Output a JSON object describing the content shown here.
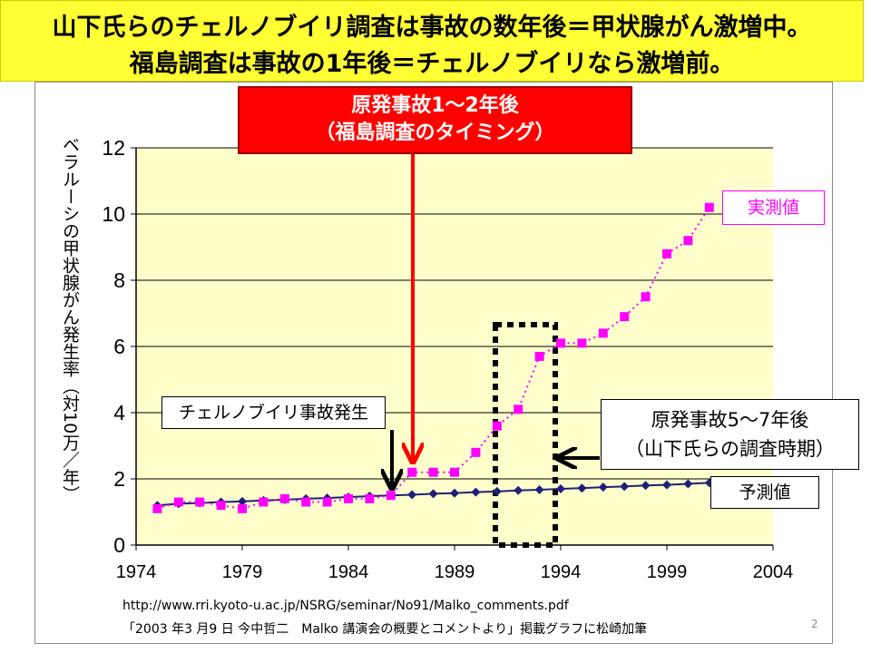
{
  "banner": {
    "line1": "山下氏らのチェルノブイリ調査は事故の数年後＝甲状腺がん激増中。",
    "line2": "福島調査は事故の1年後＝チェルノブイリなら激増前。"
  },
  "callouts": {
    "fukushima_timing_1": "原発事故1～2年後",
    "fukushima_timing_2": "（福島調査のタイミング）",
    "chernobyl_accident": "チェルノブイリ事故発生",
    "yamashita_1": "原発事故5～7年後",
    "yamashita_2": "（山下氏らの調査時期）",
    "measured": "実測値",
    "predicted": "予測値"
  },
  "source": {
    "url": "http://www.rri.kyoto-u.ac.jp/NSRG/seminar/No91/Malko_comments.pdf",
    "note": "「2003 年3 月9 日 今中哲二　Malko 講演会の概要とコメントより」掲載グラフに松崎加筆"
  },
  "page_number": "2",
  "colors": {
    "banner": "#ffff33",
    "plot_bg": "#ffffcc",
    "measured": "#ff00ff",
    "predicted": "#1f1f7a",
    "red_arrow": "#ff0000",
    "measured_label": "#ff00ff"
  },
  "chart_data": {
    "type": "line",
    "title": "",
    "xlabel": "",
    "ylabel": "ベラルーシの甲状腺がん発生率（対10万／年）",
    "xlim": [
      1974,
      2004
    ],
    "ylim": [
      0,
      12
    ],
    "x_ticks": [
      1974,
      1979,
      1984,
      1989,
      1994,
      1999,
      2004
    ],
    "y_ticks": [
      0,
      2,
      4,
      6,
      8,
      10,
      12
    ],
    "grid": "horizontal",
    "series": [
      {
        "name": "実測値",
        "marker": "square",
        "line": "dotted",
        "x": [
          1975,
          1976,
          1977,
          1978,
          1979,
          1980,
          1981,
          1982,
          1983,
          1984,
          1985,
          1986,
          1987,
          1988,
          1989,
          1990,
          1991,
          1992,
          1993,
          1994,
          1995,
          1996,
          1997,
          1998,
          1999,
          2000,
          2001
        ],
        "values": [
          1.1,
          1.3,
          1.3,
          1.2,
          1.1,
          1.3,
          1.4,
          1.3,
          1.3,
          1.4,
          1.4,
          1.5,
          2.2,
          2.2,
          2.2,
          2.8,
          3.6,
          4.1,
          5.7,
          6.1,
          6.1,
          6.4,
          6.9,
          7.5,
          8.8,
          9.2,
          10.2
        ]
      },
      {
        "name": "予測値",
        "marker": "diamond",
        "line": "solid",
        "x": [
          1975,
          1976,
          1977,
          1978,
          1979,
          1980,
          1981,
          1982,
          1983,
          1984,
          1985,
          1986,
          1987,
          1988,
          1989,
          1990,
          1991,
          1992,
          1993,
          1994,
          1995,
          1996,
          1997,
          1998,
          1999,
          2000,
          2001
        ],
        "values": [
          1.2,
          1.25,
          1.27,
          1.3,
          1.32,
          1.35,
          1.37,
          1.4,
          1.42,
          1.45,
          1.48,
          1.5,
          1.52,
          1.55,
          1.57,
          1.6,
          1.62,
          1.65,
          1.67,
          1.7,
          1.72,
          1.75,
          1.77,
          1.8,
          1.82,
          1.85,
          1.88
        ]
      }
    ]
  }
}
